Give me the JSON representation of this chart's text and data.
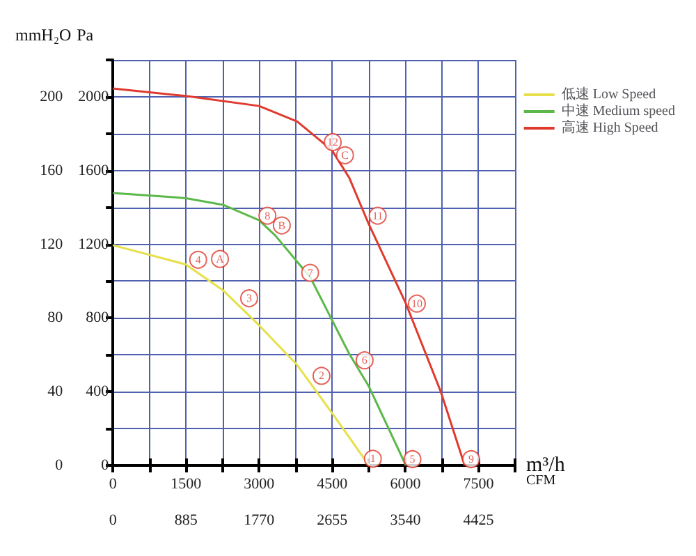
{
  "chart_data": {
    "type": "line",
    "ylabel": "mmH₂O",
    "y2label": "Pa",
    "xlabel": "m³/h",
    "x2label": "CFM",
    "xlim": [
      0,
      8250
    ],
    "xticks": [
      0,
      {
        "value": 750,
        "label": null
      },
      1500,
      {
        "value": 2250,
        "label": null
      },
      3000,
      {
        "value": 3750,
        "label": null
      },
      4500,
      {
        "value": 5250,
        "label": null
      },
      6000,
      {
        "value": 6750,
        "label": null
      },
      7500,
      {
        "value": 8250,
        "label": null
      }
    ],
    "x2lim": [
      0,
      4867.5
    ],
    "x2ticks": [
      0,
      {
        "value": 442.5,
        "label": null
      },
      885,
      {
        "value": 1327.5,
        "label": null
      },
      1770,
      {
        "value": 2212.5,
        "label": null
      },
      2655,
      {
        "value": 3097.5,
        "label": null
      },
      3540,
      {
        "value": 3982.5,
        "label": null
      },
      4425,
      {
        "value": 4867.5,
        "label": null
      }
    ],
    "ylim": [
      0,
      220
    ],
    "yticks": [
      0,
      {
        "value": 20,
        "label": null
      },
      40,
      {
        "value": 60,
        "label": null
      },
      80,
      {
        "value": 100,
        "label": null
      },
      120,
      {
        "value": 140,
        "label": null
      },
      160,
      {
        "value": 180,
        "label": null
      },
      200,
      {
        "value": 220,
        "label": null
      }
    ],
    "y2lim": [
      0,
      2200
    ],
    "y2ticks": [
      0,
      400,
      800,
      1200,
      1600,
      2000
    ],
    "grid": true,
    "legend": "top right",
    "marker": "none",
    "line_style": "solid",
    "series": [
      {
        "name": "低速 Low Speed",
        "color": "#e6e04a",
        "x": [
          0,
          1500,
          2260,
          3000,
          3780,
          4494,
          4850,
          5253
        ],
        "values": [
          119.5,
          109,
          95,
          76,
          54.5,
          28.5,
          15.2,
          0
        ]
      },
      {
        "name": "中速 Medium speed",
        "color": "#5cb84a",
        "x": [
          0,
          1500,
          2260,
          3000,
          3333,
          4050,
          4850,
          5253,
          6011
        ],
        "values": [
          147.8,
          145,
          141.4,
          133,
          124.7,
          102,
          60.5,
          42.8,
          0
        ]
      },
      {
        "name": "高速 High Speed",
        "color": "#e03a2e",
        "x": [
          0,
          1500,
          3000,
          3780,
          4050,
          4494,
          4850,
          5253,
          6011,
          6727,
          7217
        ],
        "values": [
          204.5,
          200.4,
          195,
          186.6,
          180.7,
          171,
          156,
          130.7,
          87.8,
          40,
          0
        ]
      }
    ],
    "annotations": [
      {
        "text": "1",
        "x": 5333,
        "y": 3.6
      },
      {
        "text": "2",
        "x": 4280,
        "y": 48.6
      },
      {
        "text": "3",
        "x": 2795,
        "y": 90.7
      },
      {
        "text": "4",
        "x": 1750,
        "y": 111.6
      },
      {
        "text": "5",
        "x": 6145,
        "y": 3.4
      },
      {
        "text": "6",
        "x": 5164,
        "y": 57
      },
      {
        "text": "7",
        "x": 4047,
        "y": 104.5
      },
      {
        "text": "8",
        "x": 3170,
        "y": 135.5
      },
      {
        "text": "9",
        "x": 7350,
        "y": 3.4
      },
      {
        "text": "10",
        "x": 6236,
        "y": 87.8
      },
      {
        "text": "11",
        "x": 5432,
        "y": 135.5
      },
      {
        "text": "12",
        "x": 4510,
        "y": 175.4
      },
      {
        "text": "A",
        "x": 2197,
        "y": 112
      },
      {
        "text": "B",
        "x": 3465,
        "y": 130.2
      },
      {
        "text": "C",
        "x": 4762,
        "y": 168.3
      }
    ]
  }
}
